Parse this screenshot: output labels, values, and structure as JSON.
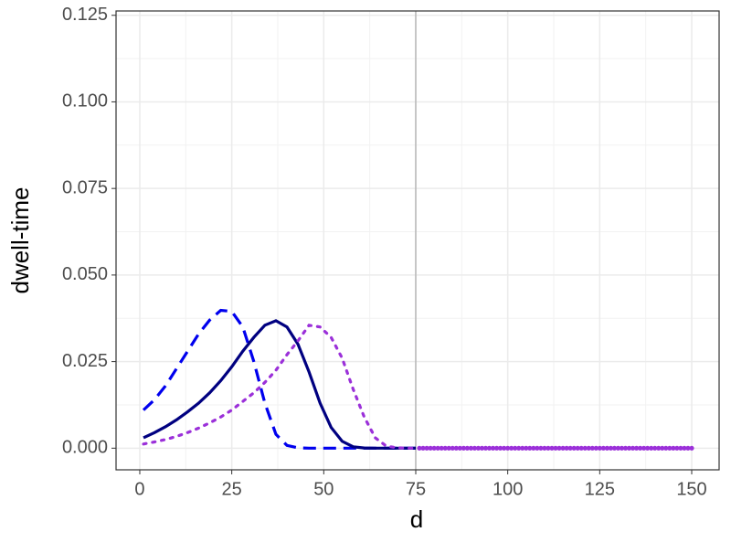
{
  "chart_data": {
    "type": "line",
    "x_label": "d",
    "y_label": "dwell-time",
    "x": [
      1,
      4,
      7,
      10,
      13,
      16,
      19,
      22,
      25,
      28,
      31,
      34,
      37,
      40,
      43,
      46,
      49,
      52,
      55,
      58,
      61,
      64,
      67,
      70,
      73,
      75
    ],
    "series": [
      {
        "color": "#0000ee",
        "dash": "dashed",
        "values": [
          0.011,
          0.014,
          0.018,
          0.023,
          0.028,
          0.033,
          0.037,
          0.0398,
          0.0395,
          0.035,
          0.025,
          0.013,
          0.004,
          0.0008,
          0.0001,
          0,
          0,
          0,
          0,
          0,
          0,
          0,
          0,
          0,
          0,
          0
        ]
      },
      {
        "color": "#000080",
        "dash": "solid",
        "values": [
          0.003,
          0.0045,
          0.0062,
          0.0082,
          0.0105,
          0.013,
          0.016,
          0.0195,
          0.0235,
          0.028,
          0.032,
          0.0355,
          0.0368,
          0.035,
          0.03,
          0.022,
          0.013,
          0.006,
          0.002,
          0.0004,
          5e-05,
          0,
          0,
          0,
          0,
          0
        ]
      },
      {
        "color": "#9b30d9",
        "dash": "dotted",
        "values": [
          0.0012,
          0.0018,
          0.0025,
          0.0034,
          0.0045,
          0.0058,
          0.0073,
          0.009,
          0.011,
          0.0135,
          0.016,
          0.019,
          0.0225,
          0.027,
          0.031,
          0.0355,
          0.035,
          0.032,
          0.026,
          0.017,
          0.009,
          0.003,
          0.0006,
          0.0001,
          0,
          0
        ]
      }
    ],
    "points": {
      "color": "#9b30d9",
      "x": [
        76,
        77,
        78,
        79,
        80,
        81,
        82,
        83,
        84,
        85,
        86,
        87,
        88,
        89,
        90,
        91,
        92,
        93,
        94,
        95,
        96,
        97,
        98,
        99,
        100,
        101,
        102,
        103,
        104,
        105,
        106,
        107,
        108,
        109,
        110,
        111,
        112,
        113,
        114,
        115,
        116,
        117,
        118,
        119,
        120,
        121,
        122,
        123,
        124,
        125,
        126,
        127,
        128,
        129,
        130,
        131,
        132,
        133,
        134,
        135,
        136,
        137,
        138,
        139,
        140,
        141,
        142,
        143,
        144,
        145,
        146,
        147,
        148,
        149,
        150
      ],
      "values": [
        0,
        0,
        0,
        0,
        0,
        0,
        0,
        0,
        0,
        0,
        0,
        0,
        0,
        0,
        0,
        0,
        0,
        0,
        0,
        0,
        0,
        0,
        0,
        0,
        0,
        0,
        0,
        0,
        0,
        0,
        0,
        0,
        0,
        0,
        0,
        0,
        0,
        0,
        0,
        0,
        0,
        0,
        0,
        0,
        0,
        0,
        0,
        0,
        0,
        0,
        0,
        0,
        0,
        0,
        0,
        0,
        0,
        0,
        0,
        0,
        0,
        0,
        0,
        0,
        0,
        0,
        0,
        0,
        0,
        0,
        0,
        0,
        0,
        0,
        0
      ]
    },
    "vline": 75,
    "xlim": [
      -6.45,
      157.45
    ],
    "ylim": [
      -0.00625,
      0.12625
    ],
    "xticks": [
      0,
      25,
      50,
      75,
      100,
      125,
      150
    ],
    "xminor": [
      12.5,
      37.5,
      62.5,
      87.5,
      112.5,
      137.5
    ],
    "yticks": [
      {
        "value": 0,
        "label": "0.000"
      },
      {
        "value": 0.025,
        "label": "0.025"
      },
      {
        "value": 0.05,
        "label": "0.050"
      },
      {
        "value": 0.075,
        "label": "0.075"
      },
      {
        "value": 0.1,
        "label": "0.100"
      },
      {
        "value": 0.125,
        "label": "0.125"
      }
    ],
    "yminor": [
      0.0125,
      0.0375,
      0.0625,
      0.0875,
      0.1125
    ],
    "grid": true
  }
}
